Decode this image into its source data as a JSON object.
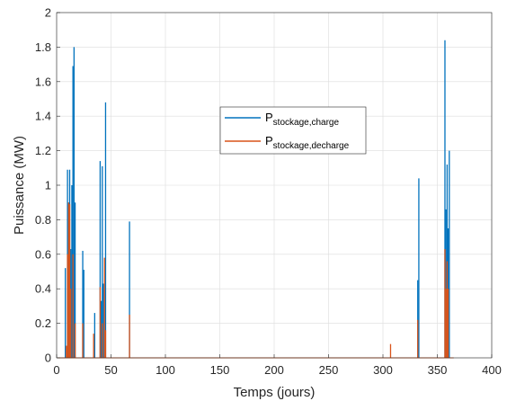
{
  "chart_data": {
    "type": "bar",
    "xlabel": "Temps (jours)",
    "ylabel": "Puissance (MW)",
    "xlim": [
      0,
      400
    ],
    "ylim": [
      0,
      2
    ],
    "xticks": [
      "0",
      "50",
      "100",
      "150",
      "200",
      "250",
      "300",
      "350",
      "400"
    ],
    "yticks": [
      "0",
      "0.2",
      "0.4",
      "0.6",
      "0.8",
      "1",
      "1.2",
      "1.4",
      "1.6",
      "1.8",
      "2"
    ],
    "grid": true,
    "legend_position": "center-right",
    "series": [
      {
        "name_main": "P",
        "name_sub": "stockage,charge",
        "color": "#0072BD",
        "x": [
          8,
          10,
          11,
          12,
          13,
          14,
          15,
          16,
          17,
          24,
          25,
          35,
          40,
          41,
          42,
          43,
          45,
          67,
          332,
          333,
          357,
          358,
          359,
          360,
          361
        ],
        "values": [
          0.52,
          1.09,
          0.9,
          1.09,
          0.63,
          1.0,
          1.69,
          1.8,
          0.9,
          0.62,
          0.51,
          0.26,
          1.14,
          0.33,
          1.11,
          0.43,
          1.48,
          0.79,
          0.45,
          1.04,
          1.84,
          0.86,
          1.12,
          0.75,
          1.2
        ]
      },
      {
        "name_main": "P",
        "name_sub": "stockage,decharge",
        "color": "#D95319",
        "x": [
          9,
          10,
          11,
          12,
          13,
          15,
          17,
          24,
          34,
          40,
          42,
          44,
          45,
          67,
          307,
          332,
          357,
          358,
          359,
          360
        ],
        "values": [
          0.07,
          0.6,
          0.9,
          0.89,
          0.4,
          0.6,
          0.2,
          0.2,
          0.14,
          0.41,
          0.2,
          0.58,
          0.16,
          0.25,
          0.08,
          0.22,
          0.63,
          0.4,
          0.56,
          0.4
        ]
      }
    ]
  }
}
